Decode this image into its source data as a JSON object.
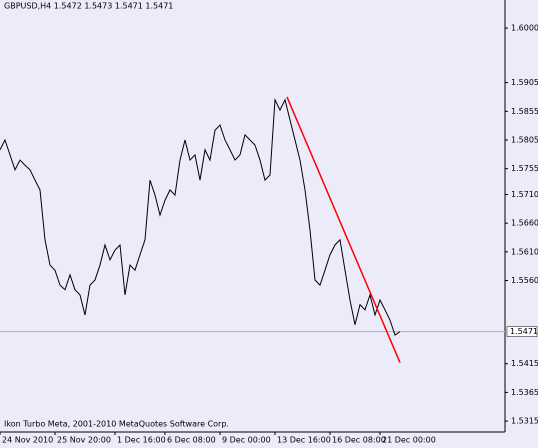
{
  "chart_data": {
    "type": "line",
    "title": "GBPUSD,H4  1.5472 1.5473 1.5471 1.5471",
    "footer": "Ikon Turbo Meta, 2001-2010 MetaQuotes Software Corp.",
    "x": [
      0,
      1,
      2,
      3,
      4,
      5,
      6,
      7,
      8,
      9,
      10,
      11,
      12,
      13,
      14,
      15,
      16,
      17,
      18,
      19,
      20,
      21,
      22,
      23,
      24,
      25,
      26,
      27,
      28,
      29,
      30,
      31,
      32,
      33,
      34,
      35,
      36,
      37,
      38,
      39,
      40,
      41,
      42,
      43,
      44,
      45,
      46,
      47,
      48,
      49,
      50,
      51,
      52,
      53,
      54,
      55,
      56,
      57,
      58,
      59,
      60,
      61,
      62,
      63,
      64,
      65,
      66,
      67,
      68,
      69,
      70,
      71,
      72,
      73,
      74,
      75,
      76,
      77,
      78,
      79,
      80
    ],
    "series": [
      {
        "name": "GBPUSD,H4",
        "color": "#000000",
        "values": [
          1.5788,
          1.5805,
          1.5779,
          1.5753,
          1.577,
          1.5761,
          1.5753,
          1.5735,
          1.5718,
          1.5631,
          1.5587,
          1.5578,
          1.5552,
          1.5544,
          1.557,
          1.5544,
          1.5535,
          1.55,
          1.5552,
          1.5561,
          1.5587,
          1.5622,
          1.5596,
          1.5613,
          1.5622,
          1.5535,
          1.5587,
          1.5578,
          1.5605,
          1.5631,
          1.5735,
          1.5709,
          1.5674,
          1.57,
          1.5718,
          1.5709,
          1.577,
          1.5805,
          1.577,
          1.5779,
          1.5735,
          1.5788,
          1.577,
          1.5822,
          1.5831,
          1.5805,
          1.5788,
          1.577,
          1.5779,
          1.5814,
          1.5805,
          1.5796,
          1.577,
          1.5735,
          1.5744,
          1.5875,
          1.5857,
          1.5875,
          1.584,
          1.5805,
          1.577,
          1.5718,
          1.5648,
          1.5561,
          1.5552,
          1.5578,
          1.5605,
          1.5622,
          1.5631,
          1.5578,
          1.5526,
          1.5483,
          1.5518,
          1.5509,
          1.5535,
          1.55,
          1.5526,
          1.5509,
          1.5491,
          1.5465,
          1.5471
        ]
      }
    ],
    "trendline": {
      "x": [
        57.4,
        80
      ],
      "values": [
        1.588,
        1.5417
      ],
      "color": "#ff0000"
    },
    "last_price": 1.5471,
    "xlim": [
      0,
      101
    ],
    "xticks": [
      {
        "value": 0,
        "label": "24 Nov 2010"
      },
      {
        "value": 11,
        "label": "25 Nov 20:00"
      },
      {
        "value": 23,
        "label": "1 Dec 16:00"
      },
      {
        "value": 33,
        "label": "6 Dec 08:00"
      },
      {
        "value": 44,
        "label": "9 Dec 00:00"
      },
      {
        "value": 55,
        "label": "13 Dec 16:00"
      },
      {
        "value": 66,
        "label": "16 Dec 08:00"
      },
      {
        "value": 76,
        "label": "21 Dec 00:00"
      }
    ],
    "ylim": [
      1.5296,
      1.6049
    ],
    "yticks": [
      {
        "value": 1.6,
        "label": "1.6000"
      },
      1.5905,
      1.5855,
      1.5805,
      1.5755,
      {
        "value": 1.571,
        "label": "1.5710"
      },
      {
        "value": 1.566,
        "label": "1.5660"
      },
      {
        "value": 1.561,
        "label": "1.5610"
      },
      {
        "value": 1.556,
        "label": "1.5560"
      },
      1.5415,
      1.5365,
      1.5315
    ]
  }
}
